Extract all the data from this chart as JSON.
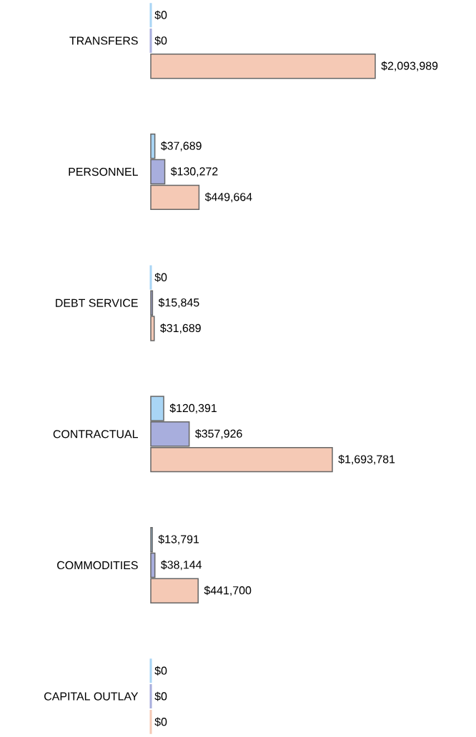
{
  "chart_data": {
    "type": "bar",
    "orientation": "horizontal",
    "tick_labels": "y",
    "categories": [
      "TRANSFERS",
      "PERSONNEL",
      "DEBT SERVICE",
      "CONTRACTUAL",
      "COMMODITIES",
      "CAPITAL OUTLAY"
    ],
    "series": [
      {
        "color": "#a9d5f5",
        "values": [
          0,
          37689,
          0,
          120391,
          13791,
          0
        ],
        "value_labels": [
          "$0",
          "$37,689",
          "$0",
          "$120,391",
          "$13,791",
          "$0"
        ]
      },
      {
        "color": "#a8aedd",
        "values": [
          0,
          130272,
          15845,
          357926,
          38144,
          0
        ],
        "value_labels": [
          "$0",
          "$130,272",
          "$15,845",
          "$357,926",
          "$38,144",
          "$0"
        ]
      },
      {
        "color": "#f5c9b5",
        "values": [
          2093989,
          449664,
          31689,
          1693781,
          441700,
          0
        ],
        "value_labels": [
          "$2,093,989",
          "$449,664",
          "$31,689",
          "$1,693,781",
          "$441,700",
          "$0"
        ]
      }
    ]
  }
}
